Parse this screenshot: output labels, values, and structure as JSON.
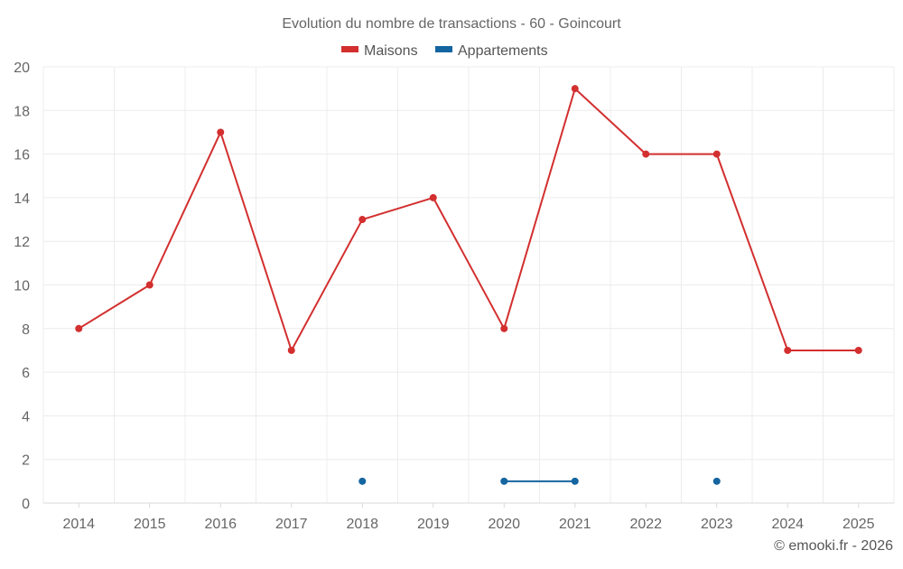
{
  "chart_data": {
    "type": "line",
    "title": "Evolution du nombre de transactions - 60 - Goincourt",
    "categories": [
      "2014",
      "2015",
      "2016",
      "2017",
      "2018",
      "2019",
      "2020",
      "2021",
      "2022",
      "2023",
      "2024",
      "2025"
    ],
    "series": [
      {
        "name": "Maisons",
        "color": "#d32f2f",
        "values": [
          8,
          10,
          17,
          7,
          13,
          14,
          8,
          19,
          16,
          16,
          7,
          7
        ]
      },
      {
        "name": "Appartements",
        "color": "#1565a0",
        "values": [
          null,
          null,
          null,
          null,
          1,
          null,
          1,
          1,
          null,
          1,
          null,
          null
        ]
      }
    ],
    "ylim": [
      0,
      20
    ],
    "yticks": [
      0,
      2,
      4,
      6,
      8,
      10,
      12,
      14,
      16,
      18,
      20
    ],
    "xlabel": "",
    "ylabel": "",
    "grid": true,
    "legend_position": "top-center"
  },
  "credit": "© emooki.fr - 2026"
}
